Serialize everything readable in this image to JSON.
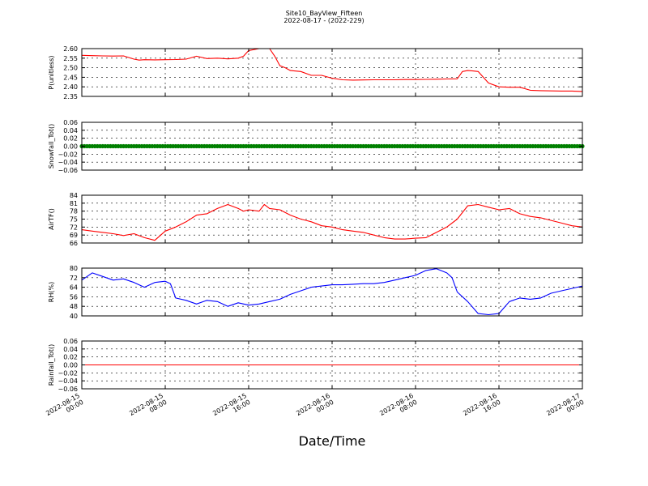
{
  "figure": {
    "title": "Site10_BayView_Fifteen",
    "subtitle": "2022-08-17 - (2022-229)",
    "xlabel": "Date/Time"
  },
  "chart_data": [
    {
      "type": "line",
      "ylabel": "P(unitless)",
      "ylim": [
        2.35,
        2.6
      ],
      "yticks": [
        2.35,
        2.4,
        2.45,
        2.5,
        2.55,
        2.6
      ],
      "ytick_labels": [
        "2.35",
        "2.40",
        "2.45",
        "2.50",
        "2.55",
        "2.60"
      ],
      "color": "#ff0000",
      "grid": true,
      "series": [
        {
          "x": [
            0,
            2,
            4,
            6,
            8,
            10,
            11,
            12,
            14,
            16,
            18,
            20,
            22,
            24,
            26,
            28,
            30,
            31,
            32,
            34,
            36,
            37,
            38,
            39,
            40,
            42,
            44,
            46,
            48,
            50,
            52,
            54,
            56,
            58,
            60,
            62,
            64,
            66,
            68,
            70,
            72,
            73,
            74,
            75,
            76,
            78,
            80,
            82,
            84,
            86,
            88,
            90,
            92,
            94,
            96
          ],
          "y": [
            2.565,
            2.563,
            2.562,
            2.561,
            2.562,
            2.545,
            2.54,
            2.542,
            2.541,
            2.542,
            2.543,
            2.545,
            2.56,
            2.548,
            2.55,
            2.546,
            2.55,
            2.56,
            2.59,
            2.6,
            2.6,
            2.56,
            2.51,
            2.5,
            2.485,
            2.48,
            2.46,
            2.46,
            2.445,
            2.437,
            2.435,
            2.436,
            2.437,
            2.437,
            2.437,
            2.438,
            2.438,
            2.439,
            2.44,
            2.441,
            2.442,
            2.48,
            2.485,
            2.483,
            2.48,
            2.42,
            2.4,
            2.398,
            2.398,
            2.382,
            2.38,
            2.379,
            2.378,
            2.378,
            2.376
          ]
        }
      ]
    },
    {
      "type": "scatter",
      "ylabel": "Snowfall_Tot()",
      "ylim": [
        -0.06,
        0.06
      ],
      "yticks": [
        -0.06,
        -0.04,
        -0.02,
        0.0,
        0.02,
        0.04,
        0.06
      ],
      "ytick_labels": [
        "−0.06",
        "−0.04",
        "−0.02",
        "0.00",
        "0.02",
        "0.04",
        "0.06"
      ],
      "color": "#008000",
      "grid": true,
      "series": [
        {
          "x_start": 0,
          "x_end": 96,
          "x_step": 0.5,
          "y": 0.0
        }
      ]
    },
    {
      "type": "line",
      "ylabel": "AirTF()",
      "ylim": [
        66,
        84
      ],
      "yticks": [
        66,
        69,
        72,
        75,
        78,
        81,
        84
      ],
      "ytick_labels": [
        "66",
        "69",
        "72",
        "75",
        "78",
        "81",
        "84"
      ],
      "color": "#ff0000",
      "grid": true,
      "series": [
        {
          "x": [
            0,
            2,
            4,
            6,
            8,
            10,
            12,
            14,
            16,
            18,
            20,
            22,
            24,
            26,
            28,
            30,
            31,
            32,
            34,
            35,
            36,
            38,
            40,
            42,
            44,
            46,
            48,
            50,
            52,
            54,
            56,
            58,
            60,
            62,
            64,
            66,
            68,
            70,
            72,
            74,
            76,
            78,
            80,
            82,
            84,
            86,
            88,
            90,
            92,
            94,
            96
          ],
          "y": [
            71.0,
            70.5,
            70.0,
            69.5,
            68.8,
            69.5,
            68.0,
            67.0,
            70.5,
            72.0,
            74.0,
            76.5,
            77.0,
            79.0,
            80.5,
            79.0,
            78.0,
            78.5,
            78.0,
            80.5,
            79.0,
            78.5,
            76.5,
            75.0,
            74.0,
            72.5,
            72.0,
            71.0,
            70.5,
            70.0,
            69.0,
            68.0,
            67.5,
            67.5,
            67.8,
            68.0,
            70.0,
            72.0,
            75.0,
            80.0,
            80.5,
            79.5,
            78.5,
            79.0,
            77.0,
            76.0,
            75.5,
            74.5,
            73.5,
            72.5,
            72.0
          ]
        }
      ]
    },
    {
      "type": "line",
      "ylabel": "RH(%)",
      "ylim": [
        40,
        80
      ],
      "yticks": [
        40,
        48,
        56,
        64,
        72,
        80
      ],
      "ytick_labels": [
        "40",
        "48",
        "56",
        "64",
        "72",
        "80"
      ],
      "color": "#0000ff",
      "grid": true,
      "series": [
        {
          "x": [
            0,
            2,
            4,
            6,
            8,
            10,
            12,
            14,
            16,
            17,
            18,
            20,
            22,
            24,
            26,
            28,
            30,
            32,
            34,
            36,
            38,
            40,
            42,
            44,
            46,
            48,
            50,
            52,
            54,
            56,
            58,
            60,
            62,
            64,
            66,
            68,
            70,
            71,
            72,
            74,
            76,
            78,
            80,
            82,
            84,
            86,
            88,
            90,
            92,
            94,
            96
          ],
          "y": [
            70,
            76,
            73,
            70,
            71,
            68,
            64,
            68,
            69,
            67,
            55,
            53,
            50,
            53,
            52,
            48,
            51,
            49,
            50,
            52,
            54,
            58,
            61,
            64,
            65,
            66,
            66,
            66.5,
            67,
            67,
            68,
            70,
            72,
            74,
            78,
            79.5,
            76,
            72,
            60,
            52,
            42,
            41,
            42,
            52,
            55,
            54,
            55,
            59,
            61,
            63,
            65
          ]
        }
      ]
    },
    {
      "type": "line",
      "ylabel": "Rainfall_Tot()",
      "ylim": [
        -0.06,
        0.06
      ],
      "yticks": [
        -0.06,
        -0.04,
        -0.02,
        0.0,
        0.02,
        0.04,
        0.06
      ],
      "ytick_labels": [
        "−0.06",
        "−0.04",
        "−0.02",
        "0.00",
        "0.02",
        "0.04",
        "0.06"
      ],
      "color": "#ff0000",
      "grid": true,
      "series": [
        {
          "x": [
            0,
            96
          ],
          "y": [
            0.0,
            0.0
          ]
        }
      ]
    }
  ],
  "x_axis": {
    "range_hours": [
      0,
      96
    ],
    "tick_hours": [
      0,
      16,
      32,
      48,
      64,
      80,
      96
    ],
    "tick_labels": [
      [
        "2022-08-15",
        "00:00"
      ],
      [
        "2022-08-15",
        "08:00"
      ],
      [
        "2022-08-15",
        "16:00"
      ],
      [
        "2022-08-16",
        "00:00"
      ],
      [
        "2022-08-16",
        "08:00"
      ],
      [
        "2022-08-16",
        "16:00"
      ],
      [
        "2022-08-17",
        "00:00"
      ]
    ]
  }
}
